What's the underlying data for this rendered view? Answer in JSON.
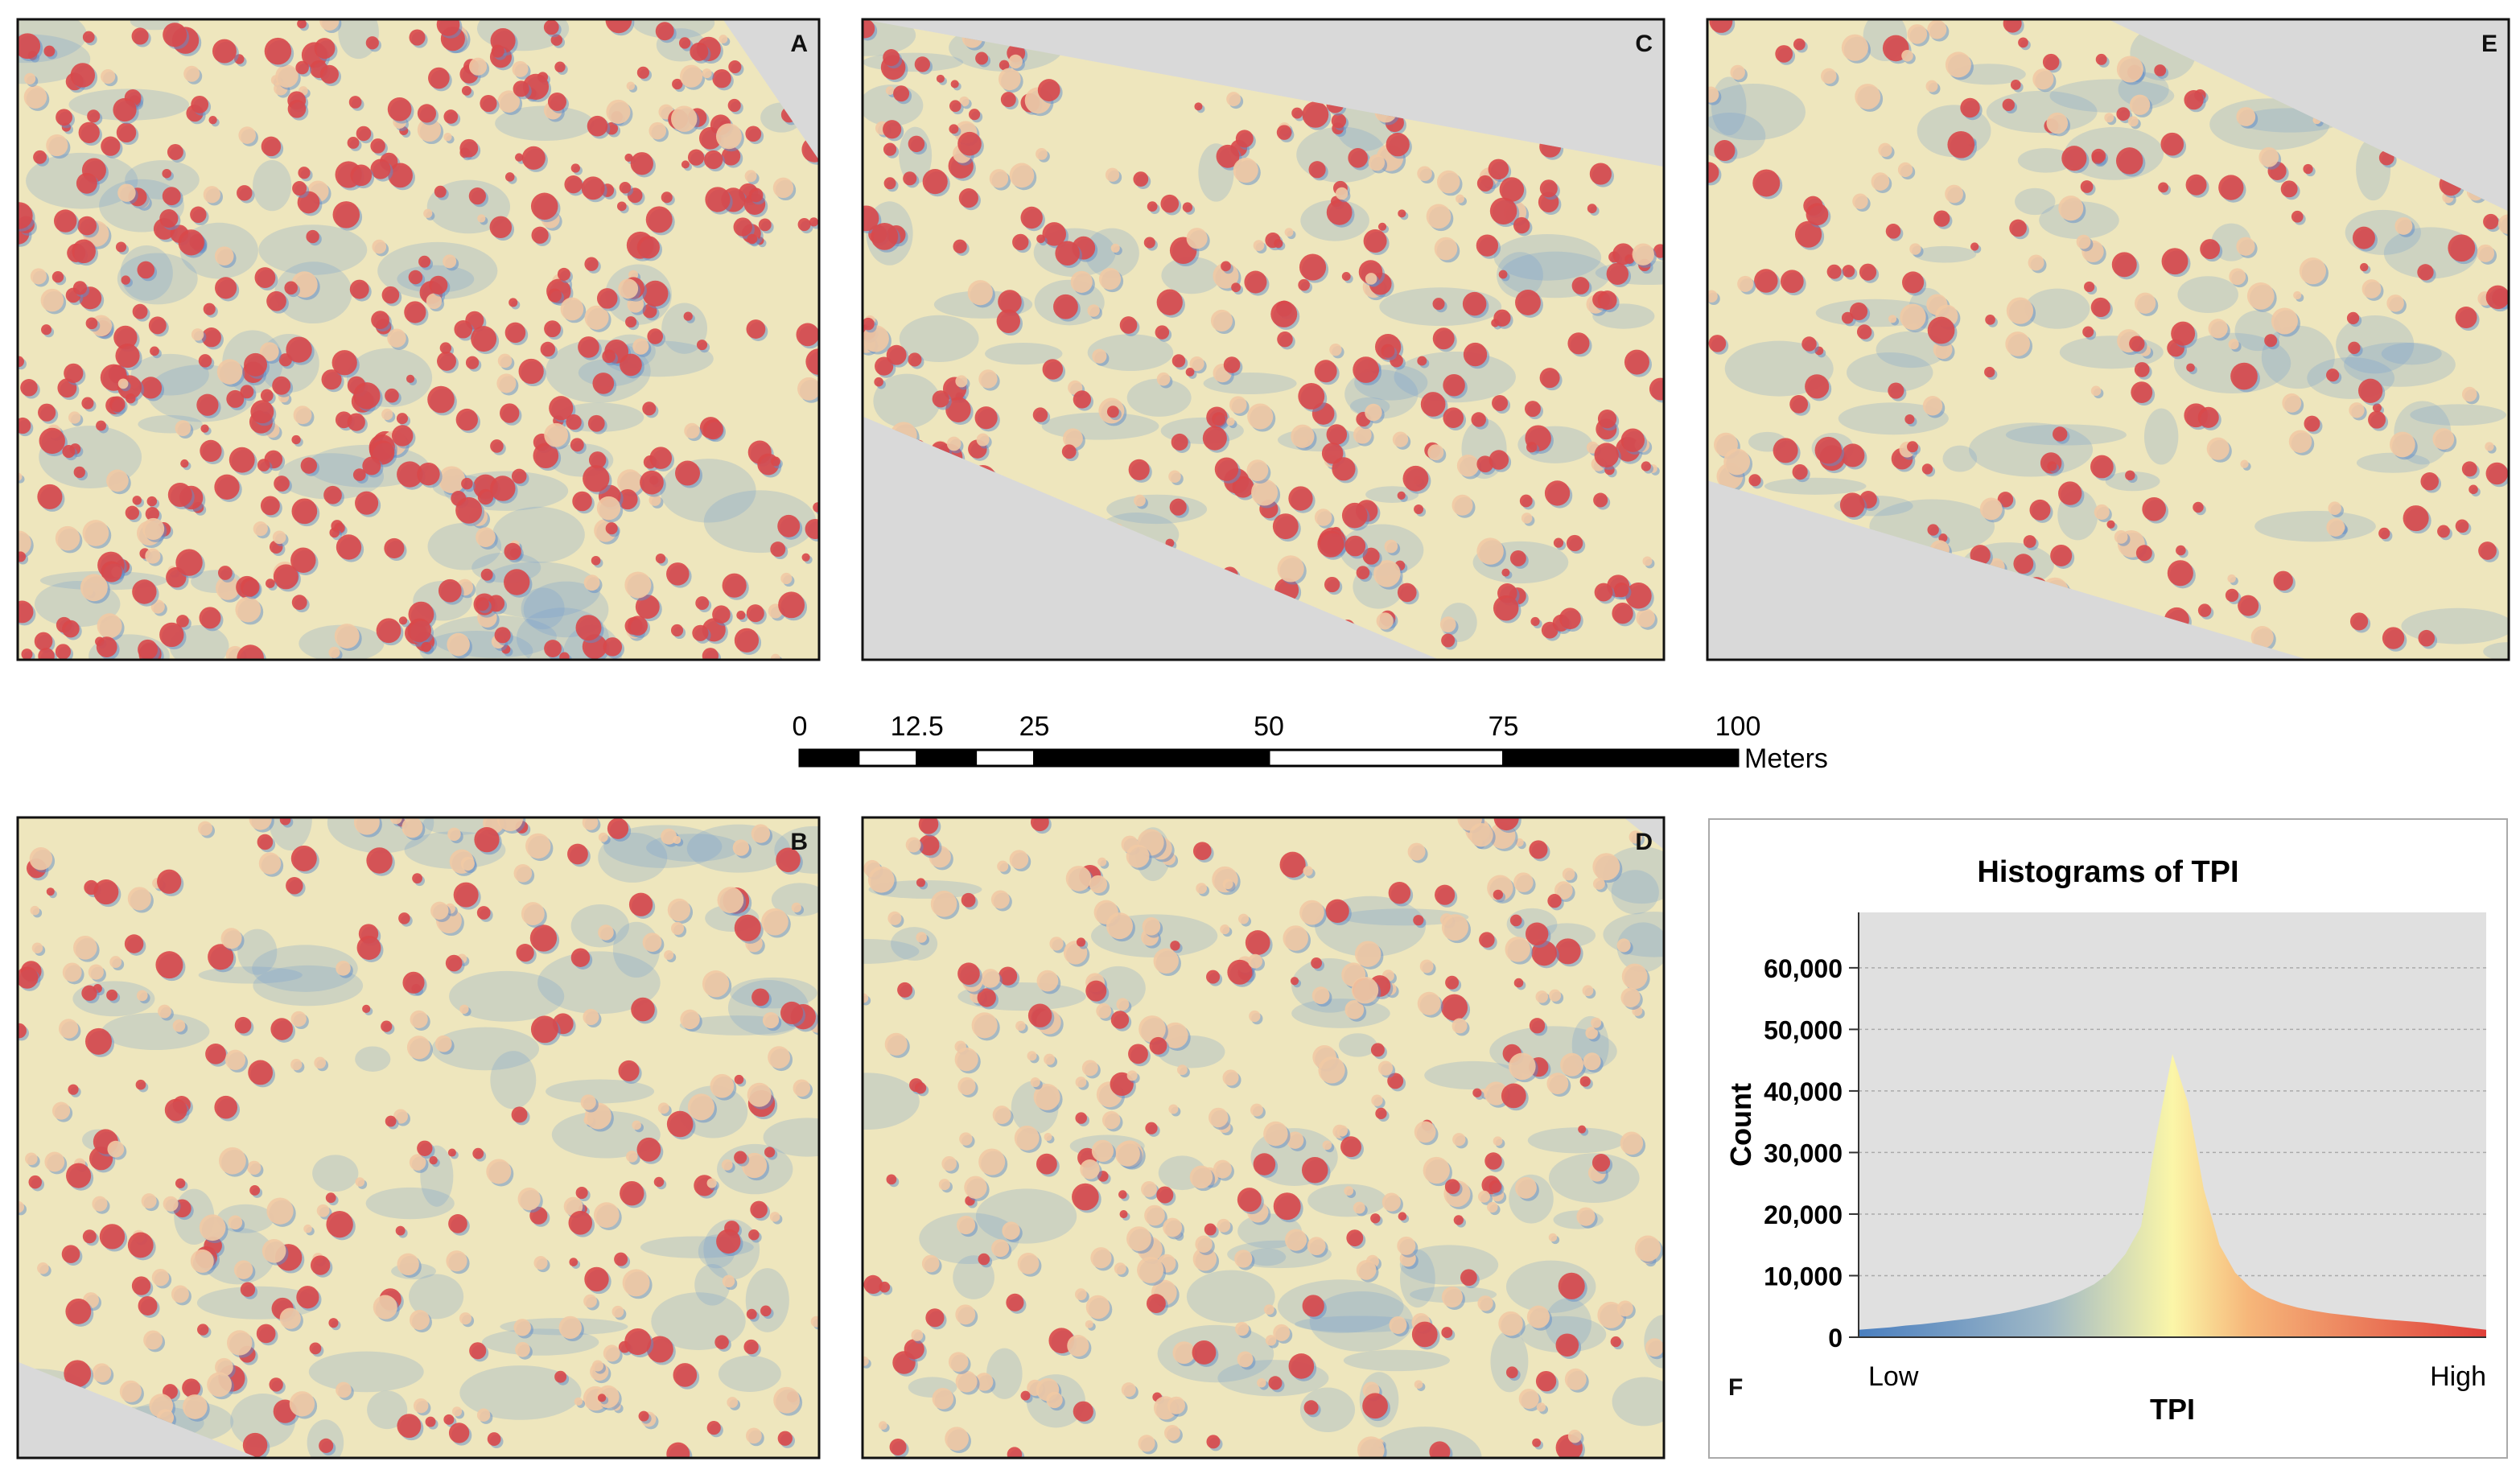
{
  "panels": [
    {
      "label": "A"
    },
    {
      "label": "C"
    },
    {
      "label": "E"
    },
    {
      "label": "B"
    },
    {
      "label": "D"
    }
  ],
  "scale_bar": {
    "ticks": [
      0,
      12.5,
      25,
      50,
      75,
      100
    ],
    "unit": "Meters"
  },
  "chart_data": {
    "type": "area",
    "title": "Histograms of TPI",
    "y_label": "Count",
    "x_label": "TPI",
    "x_low_label": "Low",
    "x_high_label": "High",
    "panel_label": "F",
    "values": [
      1200,
      1400,
      1600,
      1900,
      2100,
      2400,
      2700,
      3000,
      3400,
      3800,
      4300,
      4900,
      5500,
      6300,
      7300,
      8600,
      10500,
      13500,
      18000,
      33000,
      46000,
      38000,
      24000,
      15000,
      10500,
      8000,
      6500,
      5500,
      4800,
      4300,
      3900,
      3600,
      3300,
      3000,
      2800,
      2600,
      2400,
      2100,
      1800,
      1500,
      1200
    ],
    "ylim": [
      0,
      69000
    ],
    "yticks": [
      0,
      {
        "value": 10000,
        "label": "10,000"
      },
      {
        "value": 20000,
        "label": "20,000"
      },
      {
        "value": 30000,
        "label": "30,000"
      },
      {
        "value": 40000,
        "label": "40,000"
      },
      {
        "value": 50000,
        "label": "50,000"
      },
      {
        "value": 60000,
        "label": "60,000"
      }
    ],
    "grid": true
  }
}
